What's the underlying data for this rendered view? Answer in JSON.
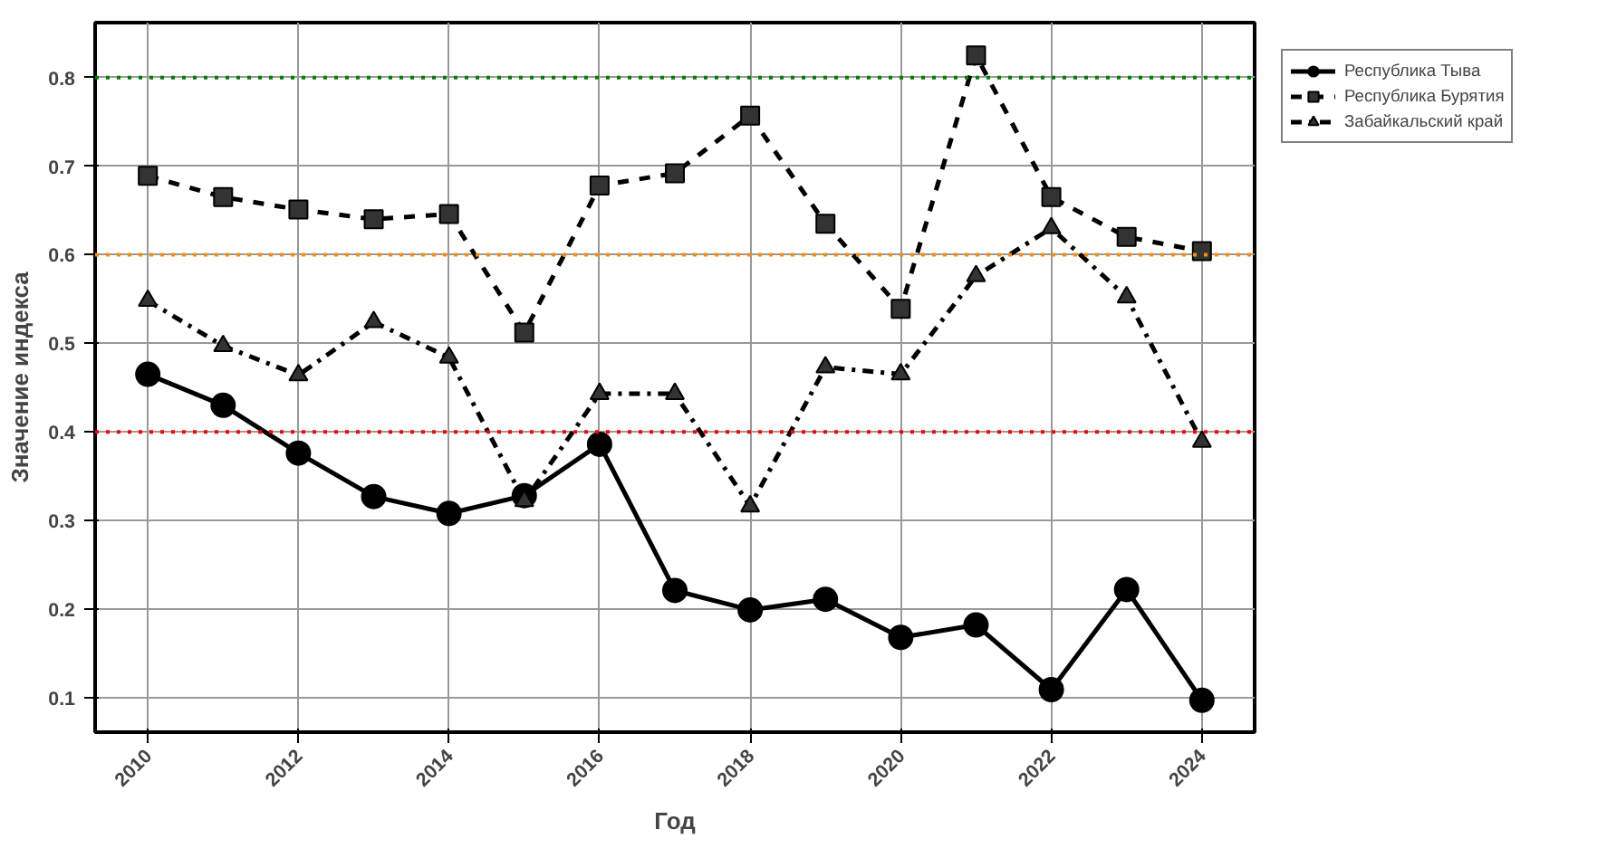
{
  "chart_data": {
    "type": "line",
    "xlabel": "Год",
    "ylabel": "Значение индекса",
    "x": [
      2010,
      2011,
      2012,
      2013,
      2014,
      2015,
      2016,
      2017,
      2018,
      2019,
      2020,
      2021,
      2022,
      2023,
      2024
    ],
    "series": [
      {
        "name": "Республика Тыва",
        "color": "#000000",
        "marker": "circle",
        "line_style": "solid",
        "values": [
          0.465,
          0.43,
          0.376,
          0.327,
          0.308,
          0.328,
          0.386,
          0.221,
          0.199,
          0.211,
          0.168,
          0.182,
          0.109,
          0.222,
          0.097
        ]
      },
      {
        "name": "Республика Бурятия",
        "color": "#000000",
        "marker": "square",
        "line_style": "dashed",
        "values": [
          0.689,
          0.665,
          0.651,
          0.64,
          0.646,
          0.512,
          0.678,
          0.692,
          0.757,
          0.635,
          0.539,
          0.825,
          0.665,
          0.62,
          0.604
        ]
      },
      {
        "name": "Забайкальский край",
        "color": "#000000",
        "marker": "triangle",
        "line_style": "dashdot",
        "values": [
          0.548,
          0.497,
          0.464,
          0.524,
          0.484,
          0.322,
          0.443,
          0.443,
          0.316,
          0.473,
          0.465,
          0.576,
          0.63,
          0.552,
          0.389
        ]
      }
    ],
    "xlim": [
      2009.3,
      2024.7
    ],
    "xticks": [
      2010,
      2012,
      2014,
      2016,
      2018,
      2020,
      2022,
      2024
    ],
    "ylim": [
      0.061,
      0.862
    ],
    "yticks": [
      0.1,
      0.2,
      0.3,
      0.4,
      0.5,
      0.6,
      0.7,
      0.8
    ],
    "ref_lines": [
      {
        "axis": "y",
        "value": 0.8,
        "label": null,
        "color": "#008000",
        "line_style": "dotted"
      },
      {
        "axis": "y",
        "value": 0.6,
        "label": null,
        "color": "#ff8c00",
        "line_style": "dotted"
      },
      {
        "axis": "y",
        "value": 0.4,
        "label": null,
        "color": "#ff0000",
        "line_style": "dotted"
      }
    ],
    "grid": true,
    "legend": "top right"
  }
}
